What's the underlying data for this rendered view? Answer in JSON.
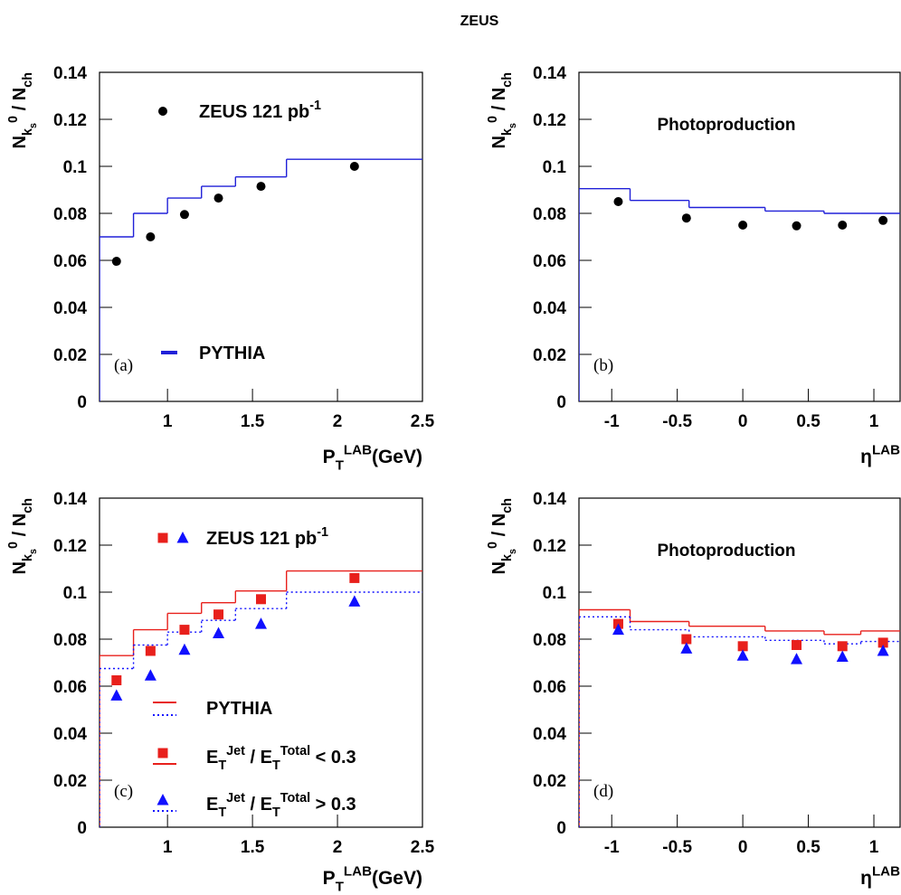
{
  "title": "ZEUS",
  "chart_data": [
    {
      "type": "overlay",
      "panel_label": "(a)",
      "ylabel": [
        {
          "text": "N"
        },
        {
          "text": "k",
          "pos": "sub"
        },
        {
          "text": "s",
          "pos": "subsub"
        },
        {
          "text": "0",
          "pos": "sup"
        },
        {
          "text": " / N"
        },
        {
          "text": "ch",
          "pos": "sub"
        }
      ],
      "xlabel": [
        {
          "text": "P"
        },
        {
          "text": "T",
          "pos": "sub"
        },
        {
          "text": "LAB",
          "pos": "sup"
        },
        {
          "text": "(GeV)"
        }
      ],
      "xlim": [
        0.6,
        2.5
      ],
      "xticks": [
        1,
        1.5,
        2,
        2.5
      ],
      "ylim": [
        0,
        0.14
      ],
      "yticks": [
        0,
        0.02,
        0.04,
        0.06,
        0.08,
        0.1,
        0.12,
        0.14
      ],
      "series": [
        {
          "type": "step",
          "color": "#2020d8",
          "dash": false,
          "bins": [
            0.6,
            0.8,
            1.0,
            1.2,
            1.4,
            1.7,
            2.5
          ],
          "values": [
            0.07,
            0.08,
            0.0865,
            0.0915,
            0.0955,
            0.103
          ]
        },
        {
          "type": "points",
          "marker": "circle",
          "color": "#000000",
          "x": [
            0.7,
            0.9,
            1.1,
            1.3,
            1.55,
            2.1
          ],
          "values": [
            0.0596,
            0.07,
            0.0795,
            0.0865,
            0.0915,
            0.1
          ]
        }
      ],
      "legend": [
        {
          "label": [
            {
              "text": "ZEUS 121 pb"
            },
            {
              "text": "-1",
              "pos": "sup"
            }
          ],
          "keys": [
            {
              "shape": "circle",
              "color": "#000000"
            }
          ]
        },
        {
          "label": [
            {
              "text": "PYTHIA"
            }
          ],
          "keys": [
            {
              "shape": "line",
              "color": "#2020d8",
              "dash": false
            }
          ]
        }
      ]
    },
    {
      "type": "overlay",
      "panel_label": "(b)",
      "annotation": "Photoproduction",
      "ylabel": [
        {
          "text": "N"
        },
        {
          "text": "k",
          "pos": "sub"
        },
        {
          "text": "s",
          "pos": "subsub"
        },
        {
          "text": "0",
          "pos": "sup"
        },
        {
          "text": " / N"
        },
        {
          "text": "ch",
          "pos": "sub"
        }
      ],
      "xlabel": [
        {
          "text": "η"
        },
        {
          "text": "LAB",
          "pos": "sup"
        }
      ],
      "xlim": [
        -1.25,
        1.2
      ],
      "xticks": [
        -1,
        -0.5,
        0,
        0.5,
        1
      ],
      "ylim": [
        0,
        0.14
      ],
      "yticks": [
        0,
        0.02,
        0.04,
        0.06,
        0.08,
        0.1,
        0.12,
        0.14
      ],
      "series": [
        {
          "type": "step",
          "color": "#2020d8",
          "dash": false,
          "bins": [
            -1.25,
            -0.86,
            -0.41,
            0.17,
            0.62,
            0.9,
            1.2
          ],
          "values": [
            0.0905,
            0.0855,
            0.0825,
            0.081,
            0.08,
            0.08
          ]
        },
        {
          "type": "points",
          "marker": "circle",
          "color": "#000000",
          "x": [
            -0.95,
            -0.43,
            0,
            0.41,
            0.76,
            1.07
          ],
          "values": [
            0.085,
            0.078,
            0.075,
            0.0747,
            0.075,
            0.077
          ]
        }
      ]
    },
    {
      "type": "overlay",
      "panel_label": "(c)",
      "ylabel": [
        {
          "text": "N"
        },
        {
          "text": "k",
          "pos": "sub"
        },
        {
          "text": "s",
          "pos": "subsub"
        },
        {
          "text": "0",
          "pos": "sup"
        },
        {
          "text": " / N"
        },
        {
          "text": "ch",
          "pos": "sub"
        }
      ],
      "xlabel": [
        {
          "text": "P"
        },
        {
          "text": "T",
          "pos": "sub"
        },
        {
          "text": "LAB",
          "pos": "sup"
        },
        {
          "text": "(GeV)"
        }
      ],
      "xlim": [
        0.6,
        2.5
      ],
      "xticks": [
        1,
        1.5,
        2,
        2.5
      ],
      "ylim": [
        0,
        0.14
      ],
      "yticks": [
        0,
        0.02,
        0.04,
        0.06,
        0.08,
        0.1,
        0.12,
        0.14
      ],
      "series": [
        {
          "type": "step",
          "color": "#e8201c",
          "dash": false,
          "bins": [
            0.6,
            0.8,
            1.0,
            1.2,
            1.4,
            1.7,
            2.5
          ],
          "values": [
            0.073,
            0.084,
            0.091,
            0.0955,
            0.1005,
            0.109
          ]
        },
        {
          "type": "step",
          "color": "#1010ff",
          "dash": true,
          "bins": [
            0.6,
            0.8,
            1.0,
            1.2,
            1.4,
            1.7,
            2.5
          ],
          "values": [
            0.0675,
            0.0775,
            0.083,
            0.088,
            0.093,
            0.1
          ]
        },
        {
          "type": "points",
          "marker": "square",
          "color": "#e8201c",
          "x": [
            0.7,
            0.9,
            1.1,
            1.3,
            1.55,
            2.1
          ],
          "values": [
            0.0625,
            0.075,
            0.084,
            0.0905,
            0.097,
            0.106
          ]
        },
        {
          "type": "points",
          "marker": "triangle",
          "color": "#1010ff",
          "x": [
            0.7,
            0.9,
            1.1,
            1.3,
            1.55,
            2.1
          ],
          "values": [
            0.056,
            0.0645,
            0.0755,
            0.0825,
            0.0865,
            0.096
          ]
        }
      ],
      "legend": [
        {
          "label": [
            {
              "text": "ZEUS 121 pb"
            },
            {
              "text": "-1",
              "pos": "sup"
            }
          ],
          "keys": [
            {
              "shape": "square",
              "color": "#e8201c"
            },
            {
              "shape": "triangle",
              "color": "#1010ff"
            }
          ]
        },
        {
          "label": [
            {
              "text": "PYTHIA"
            }
          ],
          "keys": [
            {
              "shape": "line",
              "color": "#e8201c",
              "dash": false
            },
            {
              "shape": "line",
              "color": "#1010ff",
              "dash": true
            }
          ]
        },
        {
          "label": [
            {
              "text": "E"
            },
            {
              "text": "T",
              "pos": "sub"
            },
            {
              "text": "Jet",
              "pos": "sup"
            },
            {
              "text": " / E"
            },
            {
              "text": "T",
              "pos": "sub"
            },
            {
              "text": "Total",
              "pos": "sup"
            },
            {
              "text": " < 0.3"
            }
          ],
          "keys": [
            {
              "shape": "square",
              "color": "#e8201c"
            },
            {
              "shape": "line",
              "color": "#e8201c",
              "dash": false
            }
          ]
        },
        {
          "label": [
            {
              "text": "E"
            },
            {
              "text": "T",
              "pos": "sub"
            },
            {
              "text": "Jet",
              "pos": "sup"
            },
            {
              "text": " / E"
            },
            {
              "text": "T",
              "pos": "sub"
            },
            {
              "text": "Total",
              "pos": "sup"
            },
            {
              "text": " > 0.3"
            }
          ],
          "keys": [
            {
              "shape": "triangle",
              "color": "#1010ff"
            },
            {
              "shape": "line",
              "color": "#1010ff",
              "dash": true
            }
          ]
        }
      ]
    },
    {
      "type": "overlay",
      "panel_label": "(d)",
      "annotation": "Photoproduction",
      "ylabel": [
        {
          "text": "N"
        },
        {
          "text": "k",
          "pos": "sub"
        },
        {
          "text": "s",
          "pos": "subsub"
        },
        {
          "text": "0",
          "pos": "sup"
        },
        {
          "text": " / N"
        },
        {
          "text": "ch",
          "pos": "sub"
        }
      ],
      "xlabel": [
        {
          "text": "η"
        },
        {
          "text": "LAB",
          "pos": "sup"
        }
      ],
      "xlim": [
        -1.25,
        1.2
      ],
      "xticks": [
        -1,
        -0.5,
        0,
        0.5,
        1
      ],
      "ylim": [
        0,
        0.14
      ],
      "yticks": [
        0,
        0.02,
        0.04,
        0.06,
        0.08,
        0.1,
        0.12,
        0.14
      ],
      "series": [
        {
          "type": "step",
          "color": "#e8201c",
          "dash": false,
          "bins": [
            -1.25,
            -0.86,
            -0.41,
            0.17,
            0.62,
            0.9,
            1.2
          ],
          "values": [
            0.0925,
            0.0875,
            0.0855,
            0.0835,
            0.082,
            0.0835
          ]
        },
        {
          "type": "step",
          "color": "#1010ff",
          "dash": true,
          "bins": [
            -1.25,
            -0.86,
            -0.41,
            0.17,
            0.62,
            0.9,
            1.2
          ],
          "values": [
            0.0895,
            0.084,
            0.081,
            0.0795,
            0.078,
            0.079
          ]
        },
        {
          "type": "points",
          "marker": "square",
          "color": "#e8201c",
          "x": [
            -0.95,
            -0.43,
            0,
            0.41,
            0.76,
            1.07
          ],
          "values": [
            0.0865,
            0.08,
            0.077,
            0.0775,
            0.077,
            0.0785
          ]
        },
        {
          "type": "points",
          "marker": "triangle",
          "color": "#1010ff",
          "x": [
            -0.95,
            -0.43,
            0,
            0.41,
            0.76,
            1.07
          ],
          "values": [
            0.084,
            0.076,
            0.073,
            0.0715,
            0.0725,
            0.075
          ]
        }
      ]
    }
  ]
}
